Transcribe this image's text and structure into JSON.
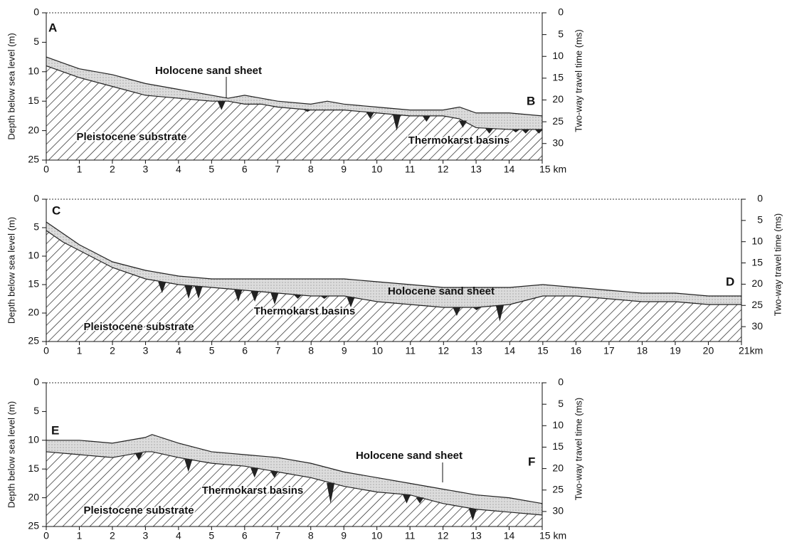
{
  "chart_data": [
    {
      "type": "profile",
      "profile_start": "A",
      "profile_end": "B",
      "annotation": "Thermokarst basins",
      "ylabel": "Depth below sea level (m)",
      "y2label": "Two-way travel time (ms)",
      "x": [
        0,
        0.5,
        1,
        2,
        3,
        4,
        5,
        5.5,
        6,
        6.5,
        7,
        8,
        8.5,
        9,
        10,
        11,
        12,
        12.5,
        13,
        14,
        15
      ],
      "series": [
        {
          "name": "Holocene sand sheet",
          "color": "#d9d9d9",
          "values": [
            7.5,
            8.5,
            9.5,
            10.5,
            12,
            13,
            14,
            14.5,
            14,
            14.5,
            15,
            15.5,
            15,
            15.5,
            16,
            16.5,
            16.5,
            16,
            17,
            17,
            17.5
          ]
        },
        {
          "name": "Pleistocene substrate",
          "color": "#222222",
          "values": [
            9,
            10,
            11,
            12.5,
            14,
            14.5,
            15,
            15,
            15.5,
            15.5,
            16,
            16.5,
            16.5,
            16.5,
            17,
            17.5,
            17.5,
            18,
            19.5,
            19.8,
            19.8
          ]
        }
      ],
      "basins": {
        "x": [
          5.3,
          7.9,
          9.8,
          10.6,
          11.5,
          12.6,
          13.4,
          14.2,
          14.5,
          14.9
        ],
        "depth": [
          16.5,
          16.8,
          18,
          20,
          18.5,
          19.5,
          20.5,
          20.3,
          20.5,
          20.5
        ]
      },
      "xlim": [
        0,
        15
      ],
      "xticks": [
        0,
        1,
        2,
        3,
        4,
        5,
        6,
        7,
        8,
        9,
        10,
        11,
        12,
        13,
        14,
        {
          "value": 15,
          "label": "15 km"
        }
      ],
      "ylim": [
        0,
        25
      ],
      "yticks": [
        0,
        5,
        10,
        15,
        20,
        25
      ],
      "y2lim": [
        0,
        33.8
      ],
      "y2ticks": [
        0,
        5,
        10,
        15,
        20,
        25,
        30
      ]
    },
    {
      "type": "profile",
      "profile_start": "C",
      "profile_end": "D",
      "annotation": "Thermokarst basins",
      "ylabel": "Depth below sea level (m)",
      "y2label": "Two-way travel time (ms)",
      "x": [
        0,
        0.5,
        1,
        1.5,
        2,
        3,
        4,
        5,
        6,
        7,
        8,
        9,
        10,
        11,
        12,
        13,
        14,
        15,
        16,
        17,
        18,
        19,
        20,
        21
      ],
      "series": [
        {
          "name": "Holocene sand sheet",
          "color": "#d9d9d9",
          "values": [
            4,
            6,
            8,
            9.5,
            11,
            12.5,
            13.5,
            14,
            14,
            14,
            14,
            14,
            14.5,
            15,
            15.5,
            15.5,
            15.5,
            15,
            15.5,
            16,
            16.5,
            16.5,
            17,
            17
          ]
        },
        {
          "name": "Pleistocene substrate",
          "color": "#222222",
          "values": [
            5.5,
            7.5,
            9,
            10.5,
            12,
            14,
            15,
            15.5,
            16,
            16.5,
            17,
            17,
            18,
            18.5,
            19,
            19,
            18.5,
            17,
            17,
            17.5,
            18,
            18,
            18.5,
            18.5
          ]
        }
      ],
      "basins": {
        "x": [
          3.5,
          4.3,
          4.6,
          5.8,
          6.3,
          6.9,
          7.6,
          8.4,
          9.2,
          12.4,
          13,
          13.7
        ],
        "depth": [
          16.5,
          17.5,
          17.5,
          18,
          18,
          18.5,
          17.5,
          17.5,
          19,
          20.5,
          19.5,
          21.5
        ]
      },
      "xlim": [
        0,
        21
      ],
      "xticks": [
        0,
        1,
        2,
        3,
        4,
        5,
        6,
        7,
        8,
        9,
        10,
        11,
        12,
        13,
        14,
        15,
        16,
        17,
        18,
        19,
        20,
        {
          "value": 21,
          "label": "21km"
        }
      ],
      "ylim": [
        0,
        25
      ],
      "yticks": [
        0,
        5,
        10,
        15,
        20,
        25
      ],
      "y2lim": [
        0,
        33.5
      ],
      "y2ticks": [
        0,
        5,
        10,
        15,
        20,
        25,
        30
      ]
    },
    {
      "type": "profile",
      "profile_start": "E",
      "profile_end": "F",
      "annotation": "Thermokarst basins",
      "ylabel": "Depth below sea level (m)",
      "y2label": "Two-way travel time (ms)",
      "x": [
        0,
        1,
        2,
        3,
        3.2,
        4,
        5,
        6,
        7,
        8,
        9,
        10,
        11,
        12,
        13,
        14,
        15
      ],
      "series": [
        {
          "name": "Holocene sand sheet",
          "color": "#d9d9d9",
          "values": [
            10,
            10,
            10.5,
            9.5,
            9,
            10.5,
            12,
            12.5,
            13,
            14,
            15.5,
            16.5,
            17.5,
            18.5,
            19.5,
            20,
            21
          ]
        },
        {
          "name": "Pleistocene substrate",
          "color": "#222222",
          "values": [
            12,
            12.5,
            13,
            12,
            12,
            13,
            14,
            14.5,
            15.5,
            16.5,
            18,
            19,
            19.5,
            21,
            22,
            22.5,
            23
          ]
        }
      ],
      "basins": {
        "x": [
          2.8,
          4.3,
          6.3,
          6.9,
          8.6,
          10.9,
          11.3,
          12.9
        ],
        "depth": [
          13.5,
          15.5,
          16.5,
          16.5,
          21,
          21,
          21,
          24
        ]
      },
      "xlim": [
        0,
        15
      ],
      "xticks": [
        0,
        1,
        2,
        3,
        4,
        5,
        6,
        7,
        8,
        9,
        10,
        11,
        12,
        13,
        14,
        {
          "value": 15,
          "label": "15 km"
        }
      ],
      "ylim": [
        0,
        25
      ],
      "yticks": [
        0,
        5,
        10,
        15,
        20,
        25
      ],
      "y2lim": [
        0,
        33.5
      ],
      "y2ticks": [
        0,
        5,
        10,
        15,
        20,
        25,
        30
      ]
    }
  ]
}
